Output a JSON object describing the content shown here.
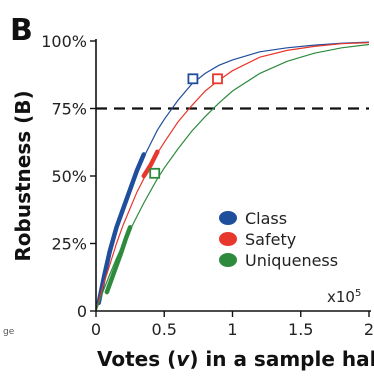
{
  "panel_label": "B",
  "stray_fragment": "ge",
  "colors": {
    "class": "#1f4e9c",
    "safety": "#e8372c",
    "uniqueness": "#2e8b3e",
    "reference": "#111111"
  },
  "chart_data": {
    "type": "line",
    "title": "",
    "xlabel": "Votes (v) in a sample half",
    "xlabel_parts": [
      "Votes (",
      "v",
      ") in a sample half"
    ],
    "ylabel": "Robustness (B)",
    "x_scale_label": "x10",
    "x_scale_exponent": "5",
    "xlim": [
      0,
      2
    ],
    "ylim": [
      0,
      100
    ],
    "x_ticks": [
      0,
      0.5,
      1,
      1.5,
      2
    ],
    "x_tick_labels": [
      "0",
      "0.5",
      "1",
      "1.5",
      "2"
    ],
    "y_ticks": [
      0,
      25,
      50,
      75,
      100
    ],
    "y_tick_labels": [
      "0",
      "25%",
      "50%",
      "75%",
      "100%"
    ],
    "reference_line": {
      "y": 75,
      "style": "dashed"
    },
    "legend_position": "center-right",
    "series": [
      {
        "name": "Class",
        "color_key": "class",
        "fitted_curve": {
          "x": [
            0,
            0.05,
            0.1,
            0.15,
            0.2,
            0.25,
            0.3,
            0.35,
            0.4,
            0.45,
            0.5,
            0.6,
            0.7,
            0.8,
            0.9,
            1.0,
            1.2,
            1.4,
            1.6,
            1.8,
            2.0
          ],
          "y": [
            0,
            11,
            21,
            30,
            38,
            45,
            52,
            57,
            62,
            67,
            71,
            78,
            84,
            88,
            91,
            93,
            96,
            97.5,
            98.5,
            99.2,
            99.6
          ]
        },
        "observed": {
          "x": [
            0.02,
            0.06,
            0.1,
            0.15,
            0.2,
            0.25,
            0.3,
            0.35
          ],
          "y": [
            3,
            13,
            22,
            31,
            38,
            45,
            52,
            58
          ]
        },
        "marker": {
          "x": 0.71,
          "y": 86
        }
      },
      {
        "name": "Safety",
        "color_key": "safety",
        "fitted_curve": {
          "x": [
            0,
            0.05,
            0.1,
            0.15,
            0.2,
            0.25,
            0.3,
            0.35,
            0.4,
            0.45,
            0.5,
            0.6,
            0.7,
            0.8,
            0.9,
            1.0,
            1.2,
            1.4,
            1.6,
            1.8,
            2.0
          ],
          "y": [
            0,
            9,
            17,
            25,
            32,
            38,
            44,
            49,
            54,
            58.5,
            62.5,
            70,
            76,
            81.5,
            85.5,
            89,
            94,
            96.5,
            98,
            99,
            99.4
          ]
        },
        "observed": {
          "x": [
            0.35,
            0.4,
            0.45
          ],
          "y": [
            50,
            54,
            59
          ]
        },
        "marker": {
          "x": 0.89,
          "y": 86
        }
      },
      {
        "name": "Uniqueness",
        "color_key": "uniqueness",
        "fitted_curve": {
          "x": [
            0,
            0.05,
            0.1,
            0.15,
            0.2,
            0.25,
            0.3,
            0.35,
            0.4,
            0.45,
            0.5,
            0.6,
            0.7,
            0.8,
            0.9,
            1.0,
            1.2,
            1.4,
            1.6,
            1.8,
            2.0
          ],
          "y": [
            0,
            7,
            13.5,
            19.5,
            25,
            30,
            35,
            40,
            44.5,
            49,
            53,
            60,
            66.5,
            72,
            77,
            81.5,
            88,
            92.5,
            95.5,
            97.5,
            98.7
          ]
        },
        "observed": {
          "x": [
            0.08,
            0.13,
            0.18,
            0.22,
            0.25
          ],
          "y": [
            7,
            14,
            21,
            27,
            31
          ]
        },
        "marker": {
          "x": 0.43,
          "y": 51
        }
      }
    ]
  }
}
